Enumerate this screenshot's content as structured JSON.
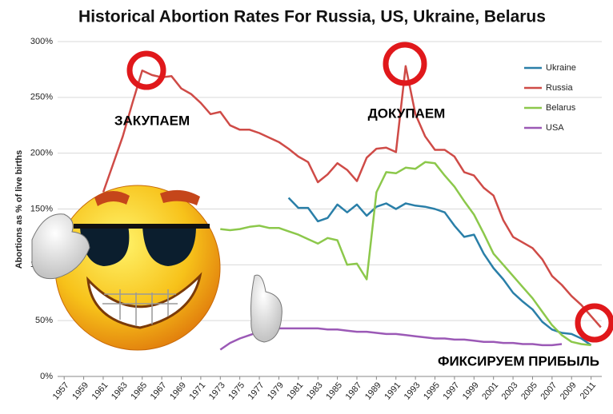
{
  "chart_data": {
    "type": "line",
    "title": "Historical Abortion Rates For Russia, US, Ukraine, Belarus",
    "y_label": "Abortions as % of live births",
    "annotations": [
      "ЗАКУПАЕМ",
      "ДОКУПАЕМ",
      "ФИКСИРУЕМ ПРИБЫЛЬ"
    ],
    "x": [
      1957,
      1958,
      1959,
      1960,
      1961,
      1962,
      1963,
      1964,
      1965,
      1966,
      1967,
      1968,
      1969,
      1970,
      1971,
      1972,
      1973,
      1974,
      1975,
      1976,
      1977,
      1978,
      1979,
      1980,
      1981,
      1982,
      1983,
      1984,
      1985,
      1986,
      1987,
      1988,
      1989,
      1990,
      1991,
      1992,
      1993,
      1994,
      1995,
      1996,
      1997,
      1998,
      1999,
      2000,
      2001,
      2002,
      2003,
      2004,
      2005,
      2006,
      2007,
      2008,
      2009,
      2010,
      2011,
      2012
    ],
    "series": [
      {
        "name": "Ukraine",
        "color": "#2a7fa8",
        "values": [
          null,
          null,
          null,
          null,
          null,
          null,
          null,
          null,
          null,
          null,
          null,
          null,
          null,
          null,
          null,
          null,
          null,
          null,
          null,
          null,
          null,
          null,
          null,
          160,
          151,
          151,
          139,
          142,
          154,
          147,
          154,
          144,
          152,
          155,
          150,
          155,
          153,
          152,
          150,
          147,
          135,
          125,
          127,
          110,
          97,
          87,
          75,
          67,
          60,
          49,
          42,
          39,
          38,
          34,
          28,
          null
        ]
      },
      {
        "name": "Russia",
        "color": "#cf4b47",
        "values": [
          null,
          null,
          null,
          null,
          165,
          190,
          215,
          245,
          274,
          270,
          268,
          269,
          258,
          253,
          245,
          235,
          237,
          225,
          221,
          221,
          218,
          214,
          210,
          204,
          197,
          192,
          174,
          181,
          191,
          185,
          175,
          196,
          204,
          205,
          201,
          278,
          235,
          215,
          203,
          203,
          197,
          183,
          180,
          169,
          162,
          140,
          125,
          120,
          115,
          105,
          90,
          82,
          72,
          64,
          54,
          44
        ]
      },
      {
        "name": "Belarus",
        "color": "#8cc84b",
        "values": [
          null,
          null,
          null,
          null,
          null,
          null,
          null,
          null,
          null,
          null,
          null,
          null,
          null,
          null,
          null,
          null,
          132,
          131,
          132,
          134,
          135,
          133,
          133,
          130,
          127,
          123,
          119,
          124,
          122,
          100,
          101,
          87,
          165,
          183,
          182,
          187,
          186,
          192,
          191,
          180,
          170,
          157,
          145,
          128,
          110,
          100,
          90,
          80,
          70,
          58,
          46,
          37,
          31,
          29,
          28,
          null
        ]
      },
      {
        "name": "USA",
        "color": "#9b59b6",
        "values": [
          null,
          null,
          null,
          null,
          null,
          null,
          null,
          null,
          null,
          null,
          null,
          null,
          null,
          null,
          null,
          null,
          24,
          30,
          34,
          37,
          40,
          41,
          43,
          43,
          43,
          43,
          43,
          42,
          42,
          41,
          40,
          40,
          39,
          38,
          38,
          37,
          36,
          35,
          34,
          34,
          33,
          33,
          32,
          31,
          31,
          30,
          30,
          29,
          29,
          28,
          28,
          29,
          null,
          null,
          null,
          null
        ]
      }
    ],
    "xlim": [
      1956,
      2013
    ],
    "xticks": [
      1957,
      1959,
      1961,
      1963,
      1965,
      1967,
      1969,
      1971,
      1973,
      1975,
      1977,
      1979,
      1981,
      1983,
      1985,
      1987,
      1989,
      1991,
      1993,
      1995,
      1997,
      1999,
      2001,
      2003,
      2005,
      2007,
      2009,
      2011
    ],
    "ylim": [
      0,
      300
    ],
    "yticks": [
      {
        "value": 0,
        "label": "0%"
      },
      {
        "value": 50,
        "label": "50%"
      },
      {
        "value": 100,
        "label": "100%"
      },
      {
        "value": 150,
        "label": "150%"
      },
      {
        "value": 200,
        "label": "200%"
      },
      {
        "value": 250,
        "label": "250%"
      },
      {
        "value": 300,
        "label": "300%"
      }
    ],
    "grid": true,
    "legend": "upper right"
  }
}
